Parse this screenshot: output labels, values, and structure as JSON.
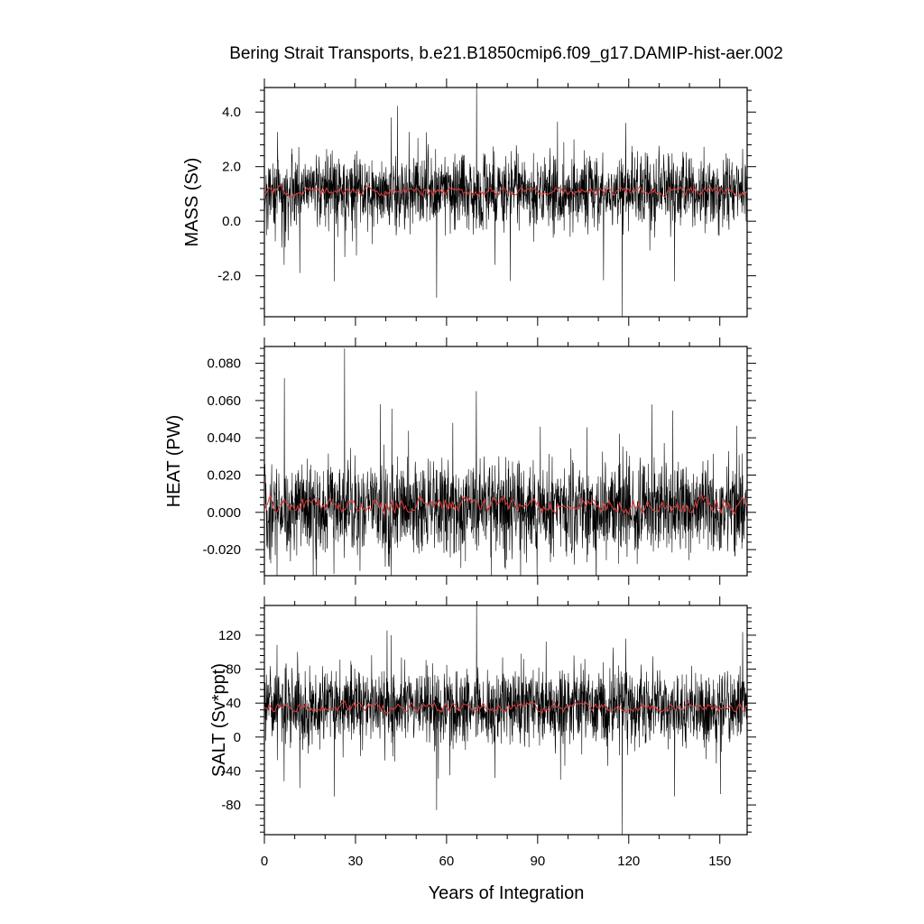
{
  "title": "Bering Strait Transports, b.e21.B1850cmip6.f09_g17.DAMIP-hist-aer.002",
  "xlabel": "Years of Integration",
  "x_tick_labels": [
    "0",
    "30",
    "60",
    "90",
    "120",
    "150"
  ],
  "colors": {
    "raw_series": "#000000",
    "smoothed_series": "#e03a3a"
  },
  "chart_data": [
    {
      "type": "line",
      "ylabel": "MASS (Sv)",
      "xlim": [
        0,
        159
      ],
      "ylim": [
        -3.5,
        4.9
      ],
      "xticks": [
        0,
        30,
        60,
        90,
        120,
        150
      ],
      "yticks": [
        -2.0,
        0.0,
        2.0,
        4.0
      ],
      "ytick_labels": [
        "-2.0",
        "0.0",
        "2.0",
        "4.0"
      ],
      "series": [
        {
          "style": "raw",
          "x_start": 0,
          "x_step": 0.0833,
          "base": 1.1,
          "amplitude": 0.65,
          "spikes": [
            [
              1.2,
              -0.3
            ],
            [
              6.5,
              -1.6
            ],
            [
              11.7,
              -1.9
            ],
            [
              23.1,
              -2.2
            ],
            [
              41.8,
              3.8
            ],
            [
              56.7,
              -2.8
            ],
            [
              69.9,
              4.9
            ],
            [
              76.0,
              -1.6
            ],
            [
              102.0,
              3.0
            ],
            [
              117.9,
              -3.5
            ],
            [
              119.0,
              3.6
            ],
            [
              135.1,
              -2.2
            ]
          ]
        },
        {
          "style": "smoothed",
          "x_start": 0,
          "x_step": 0.5,
          "mean": 1.1,
          "amplitude": 0.15
        }
      ]
    },
    {
      "type": "line",
      "ylabel": "HEAT (PW)",
      "xlim": [
        0,
        159
      ],
      "ylim": [
        -0.034,
        0.089
      ],
      "xticks": [
        0,
        30,
        60,
        90,
        120,
        150
      ],
      "yticks": [
        -0.02,
        0.0,
        0.02,
        0.04,
        0.06,
        0.08
      ],
      "ytick_labels": [
        "-0.020",
        "0.000",
        "0.020",
        "0.040",
        "0.060",
        "0.080"
      ],
      "series": [
        {
          "style": "raw",
          "x_start": 0,
          "x_step": 0.0833,
          "base": 0.003,
          "amplitude": 0.012,
          "spikes": [
            [
              6.6,
              0.072
            ],
            [
              22.9,
              -0.033
            ],
            [
              26.4,
              0.088
            ],
            [
              38.2,
              0.058
            ],
            [
              62.1,
              0.048
            ],
            [
              69.8,
              0.065
            ],
            [
              74.7,
              -0.034
            ],
            [
              86.3,
              -0.027
            ],
            [
              102.1,
              -0.028
            ]
          ]
        },
        {
          "style": "smoothed",
          "x_start": 0,
          "x_step": 0.5,
          "mean": 0.004,
          "amplitude": 0.004
        }
      ]
    },
    {
      "type": "line",
      "ylabel": "SALT (Sv*ppt)",
      "xlim": [
        0,
        159
      ],
      "ylim": [
        -115,
        155
      ],
      "xticks": [
        0,
        30,
        60,
        90,
        120,
        150
      ],
      "yticks": [
        -80,
        -40,
        0,
        40,
        80,
        120
      ],
      "ytick_labels": [
        "-80",
        "-40",
        "0",
        "40",
        "80",
        "120"
      ],
      "series": [
        {
          "style": "raw",
          "x_start": 0,
          "x_step": 0.0833,
          "base": 35,
          "amplitude": 21,
          "spikes": [
            [
              6.5,
              -52
            ],
            [
              11.7,
              -60
            ],
            [
              23.1,
              -70
            ],
            [
              41.8,
              120
            ],
            [
              56.7,
              -86
            ],
            [
              69.9,
              155
            ],
            [
              76.0,
              -48
            ],
            [
              102.0,
              96
            ],
            [
              117.9,
              -115
            ],
            [
              119.0,
              116
            ],
            [
              135.1,
              -70
            ]
          ]
        },
        {
          "style": "smoothed",
          "x_start": 0,
          "x_step": 0.5,
          "mean": 35,
          "amplitude": 5
        }
      ]
    }
  ]
}
